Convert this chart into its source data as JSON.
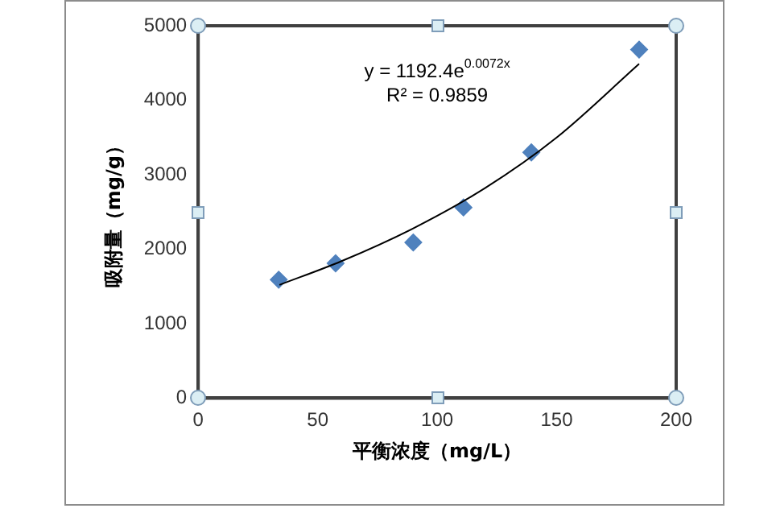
{
  "chart_data": {
    "type": "scatter",
    "xlabel": "平衡浓度（mg/L）",
    "ylabel": "吸附量（mg/g）",
    "xlim": [
      0,
      200
    ],
    "xticks": [
      0,
      50,
      100,
      150,
      200
    ],
    "ylim": [
      0,
      5000
    ],
    "yticks": [
      0,
      1000,
      2000,
      3000,
      4000,
      5000
    ],
    "grid": false,
    "legend": false,
    "marker": "diamond",
    "annotations": [
      "y = 1192.4e$^{0.0072x}$",
      "R² = 0.9859"
    ],
    "series": [
      {
        "type": "scatter",
        "color": "#4f81bd",
        "x": [
          33.7,
          57.5,
          90,
          111,
          139.4,
          184.5
        ],
        "values": [
          1590,
          1810,
          2090,
          2560,
          3300,
          4680
        ]
      },
      {
        "type": "line",
        "color": "#000000",
        "marker": "none",
        "x": [
          34,
          60,
          90,
          120,
          150,
          184.5
        ],
        "values": [
          1520,
          1840,
          2280,
          2820,
          3500,
          4490
        ]
      }
    ]
  }
}
